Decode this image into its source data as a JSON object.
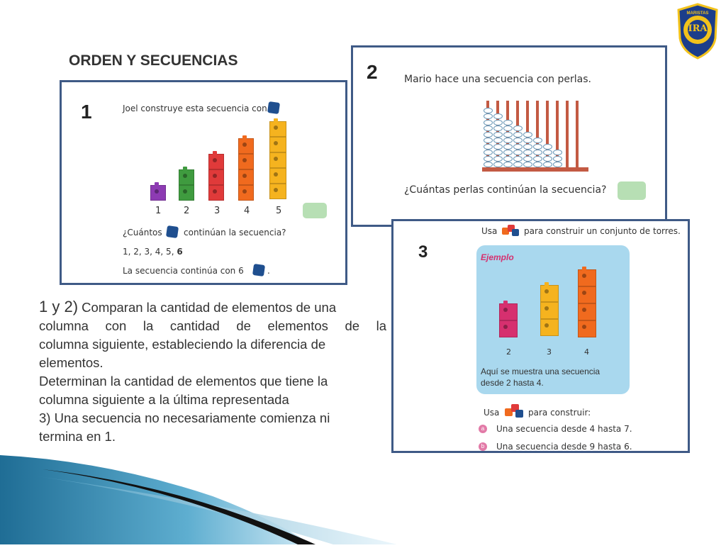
{
  "logo": {
    "ring_text": "MARISTAS",
    "center_text": "IRA"
  },
  "header": {
    "title": "ORDEN Y SECUENCIAS"
  },
  "panel1": {
    "number": "1",
    "prompt": "Joel construye esta secuencia con",
    "axis_labels": [
      "1",
      "2",
      "3",
      "4",
      "5"
    ],
    "question_prefix": "¿Cuántos",
    "question_suffix": "continúan la secuencia?",
    "answer_prefix": "1, 2, 3, 4, 5, ",
    "answer_bold": "6",
    "conclusion": "La secuencia continúa con 6",
    "conclusion_end": "."
  },
  "panel2": {
    "number": "2",
    "prompt": "Mario hace una secuencia con perlas.",
    "question": "¿Cuántas perlas continúan la secuencia?"
  },
  "panel3": {
    "number": "3",
    "top_prefix": "Usa",
    "top_suffix": "para construir un conjunto de torres.",
    "example_title": "Ejemplo",
    "tower_labels": [
      "2",
      "3",
      "4"
    ],
    "example_caption_line1": "Aquí se muestra una secuencia",
    "example_caption_line2": "desde 2 hasta 4.",
    "build_prefix": "Usa",
    "build_suffix": "para construir:",
    "items": [
      {
        "marker": "a",
        "text": "Una secuencia desde 4 hasta 7."
      },
      {
        "marker": "b",
        "text": "Una secuencia desde 9 hasta 6."
      }
    ]
  },
  "body_text": {
    "p1_prefix": "1 y 2)",
    "p1_line1": " Comparan la cantidad de elementos de una",
    "p1_line2": "columna con la cantidad de elementos de la",
    "p1_line3": "columna siguiente, estableciendo la diferencia de",
    "p1_line4": "elementos.",
    "p2_line1": "Determinan la cantidad de elementos que tiene la",
    "p2_line2": "columna siguiente a la última representada",
    "p3_line1": "3) Una secuencia no necesariamente comienza ni",
    "p3_line2": "termina en 1."
  },
  "colors": {
    "frame": "#3f5a86",
    "purple": "#8d3bb3",
    "green": "#3f9b3f",
    "red": "#e03a3a",
    "orange": "#f06a1e",
    "yellow": "#f5b31f",
    "pink": "#d6306f",
    "example_bg": "#a9d8ee",
    "rod": "#c35a43",
    "bead_stroke": "#6a98b8",
    "logo_blue": "#1c3d8a",
    "logo_gold": "#f2c21b"
  },
  "panel1_tower_heights": [
    1,
    2,
    3,
    4,
    5
  ],
  "panel2_bead_counts": [
    10,
    9,
    8,
    7,
    6,
    5,
    4,
    3,
    0,
    0
  ],
  "panel3_tower_heights": [
    2,
    3,
    4
  ]
}
